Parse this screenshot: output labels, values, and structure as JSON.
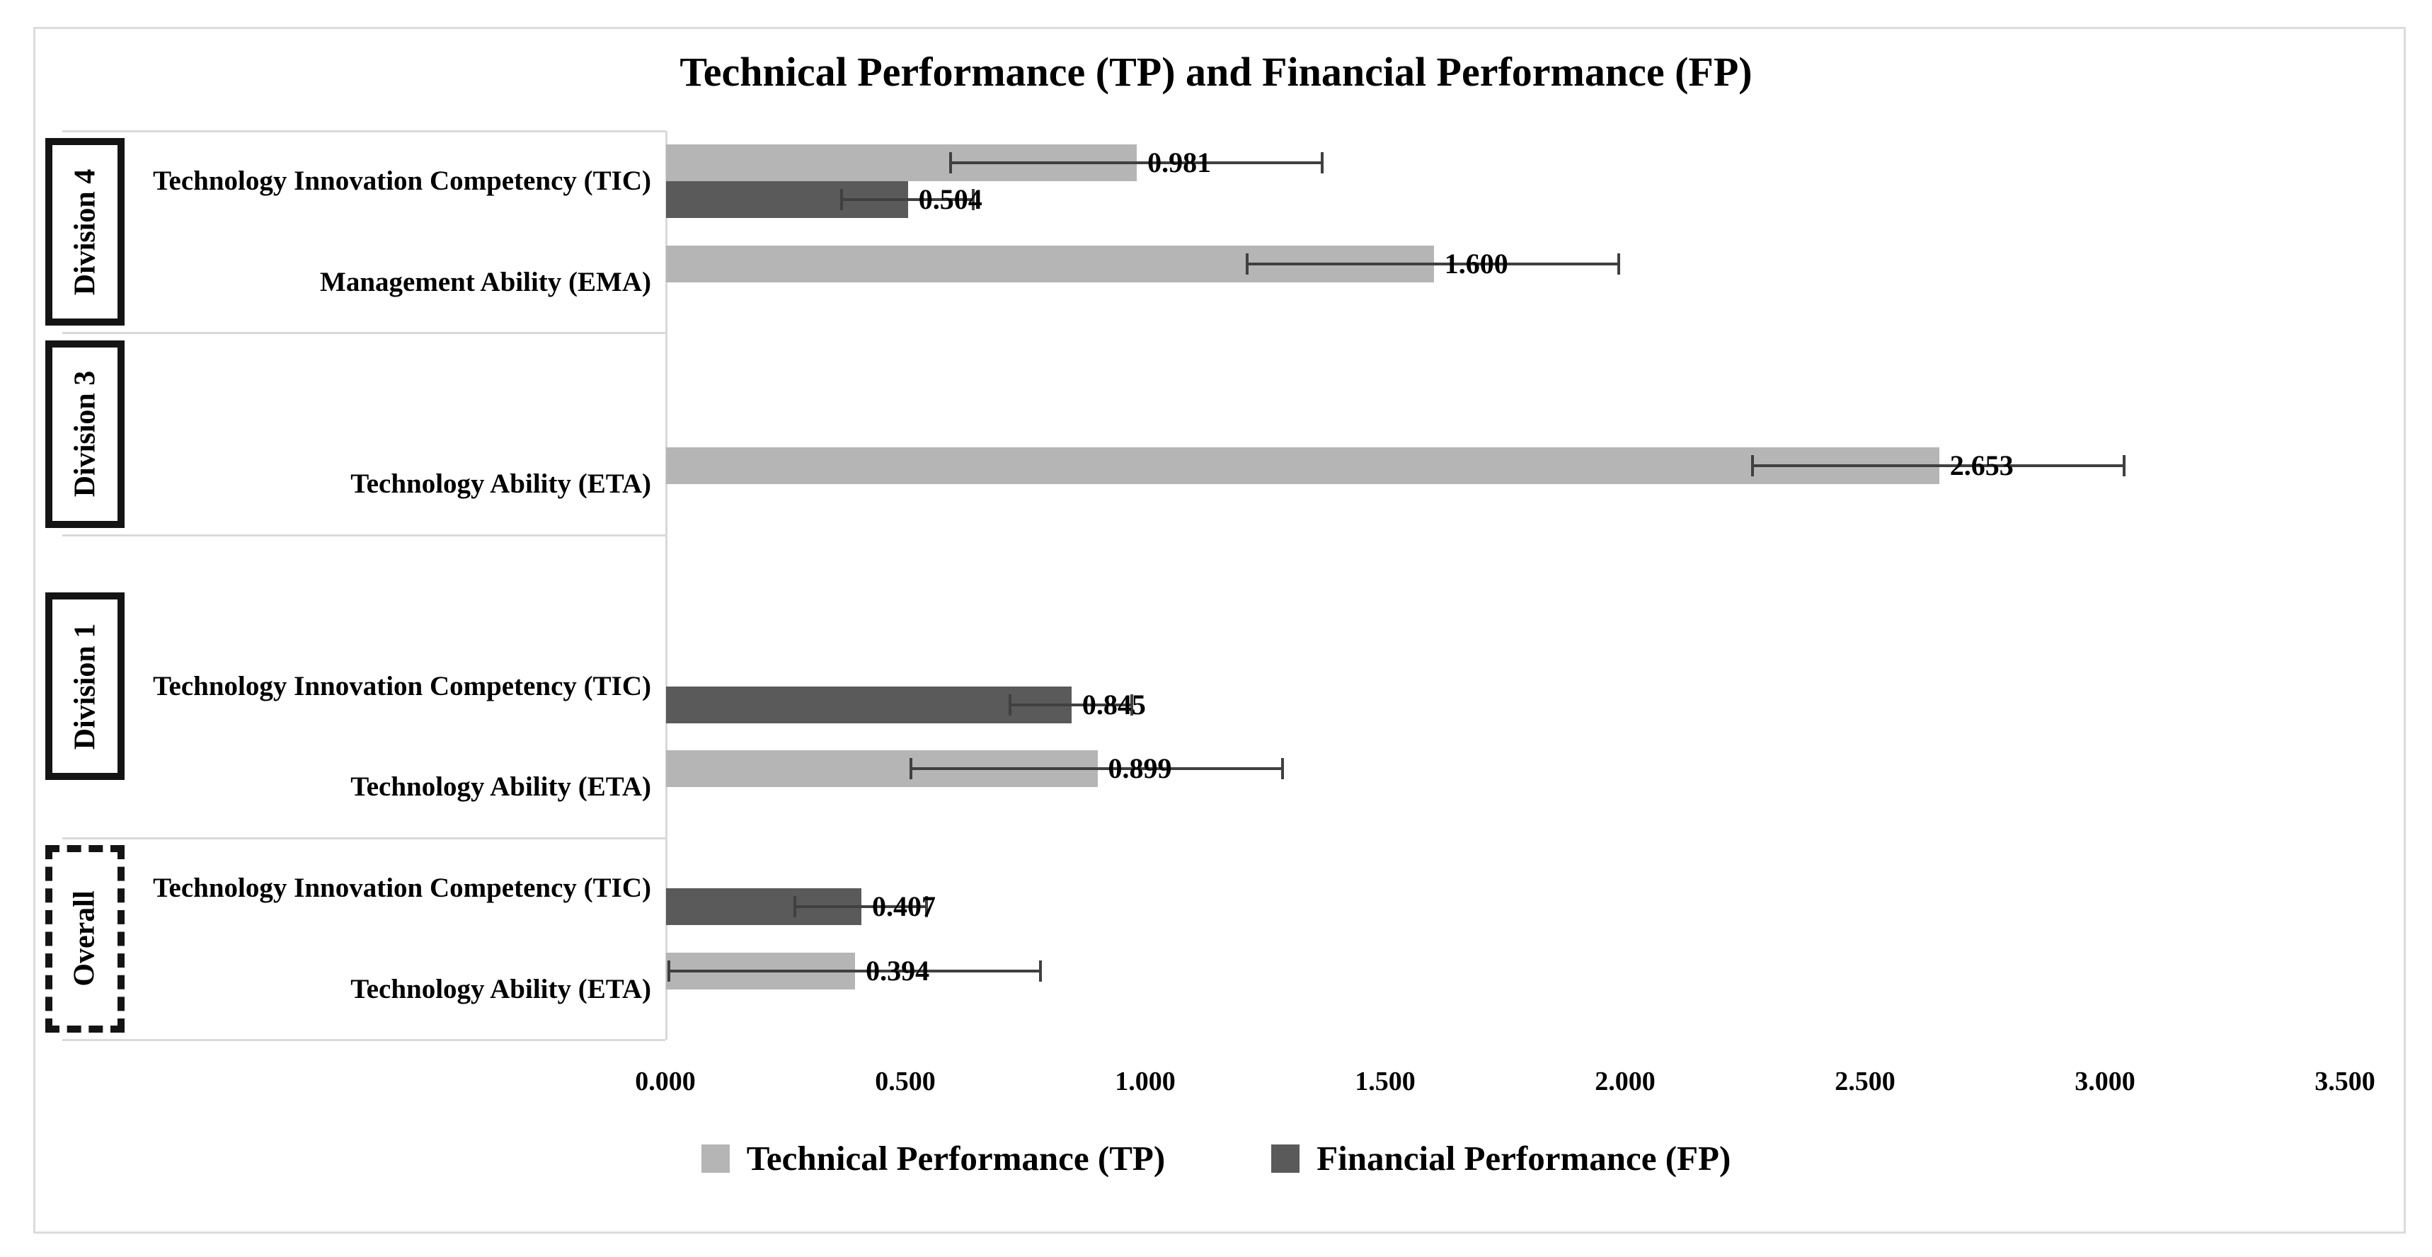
{
  "chart_data": {
    "type": "bar",
    "orientation": "horizontal",
    "title": "Technical Performance (TP) and Financial Performance (FP)",
    "legend": [
      {
        "id": "TP",
        "label": "Technical Performance (TP)",
        "color": "#b5b5b5"
      },
      {
        "id": "FP",
        "label": "Financial Performance (FP)",
        "color": "#5a5a5a"
      }
    ],
    "x_axis": {
      "min": 0,
      "max": 3.5,
      "tick_step": 0.5,
      "ticks": [
        {
          "label": "0.000",
          "value": 0.0
        },
        {
          "label": "0.500",
          "value": 0.5
        },
        {
          "label": "1.000",
          "value": 1.0
        },
        {
          "label": "1.500",
          "value": 1.5
        },
        {
          "label": "2.000",
          "value": 2.0
        },
        {
          "label": "2.500",
          "value": 2.5
        },
        {
          "label": "3.000",
          "value": 3.0
        },
        {
          "label": "3.500",
          "value": 3.5
        }
      ]
    },
    "groups": [
      {
        "name": "Division 4",
        "box_style": "solid",
        "rows": [
          {
            "category": "Technology Innovation Competency (TIC)",
            "bars": [
              {
                "series": "TP",
                "value": 0.981,
                "label": "0.981",
                "error": 0.39
              },
              {
                "series": "FP",
                "value": 0.504,
                "label": "0.504",
                "error": 0.14
              }
            ]
          },
          {
            "category": "Management Ability (EMA)",
            "bars": [
              {
                "series": "TP",
                "value": 1.6,
                "label": "1.600",
                "error": 0.39
              }
            ]
          }
        ]
      },
      {
        "name": "Division 3",
        "box_style": "solid",
        "rows": [
          {
            "category": "",
            "bars": []
          },
          {
            "category": "Technology Ability (ETA)",
            "bars": [
              {
                "series": "TP",
                "value": 2.653,
                "label": "2.653",
                "error": 0.39
              }
            ]
          }
        ]
      },
      {
        "name": "Division 1",
        "box_style": "solid",
        "rows": [
          {
            "category": "",
            "bars": []
          },
          {
            "category": "Technology Innovation Competency (TIC)",
            "bars": [
              {
                "series": "FP",
                "value": 0.845,
                "label": "0.845",
                "error": 0.13
              }
            ]
          },
          {
            "category": "Technology Ability (ETA)",
            "bars": [
              {
                "series": "TP",
                "value": 0.899,
                "label": "0.899",
                "error": 0.39
              }
            ]
          }
        ]
      },
      {
        "name": "Overall",
        "box_style": "dashed",
        "rows": [
          {
            "category": "Technology Innovation Competency (TIC)",
            "bars": [
              {
                "series": "FP",
                "value": 0.407,
                "label": "0.407",
                "error": 0.14
              }
            ]
          },
          {
            "category": "Technology Ability (ETA)",
            "bars": [
              {
                "series": "TP",
                "value": 0.394,
                "label": "0.394",
                "error": 0.39
              }
            ]
          }
        ]
      }
    ],
    "colors": {
      "tp_bar": "#b5b5b5",
      "fp_bar": "#5a5a5a",
      "error_bar": "#404040",
      "separator_line": "#d9d9d9",
      "frame_border": "#dcdcdc",
      "group_box_border": "#141414"
    }
  }
}
